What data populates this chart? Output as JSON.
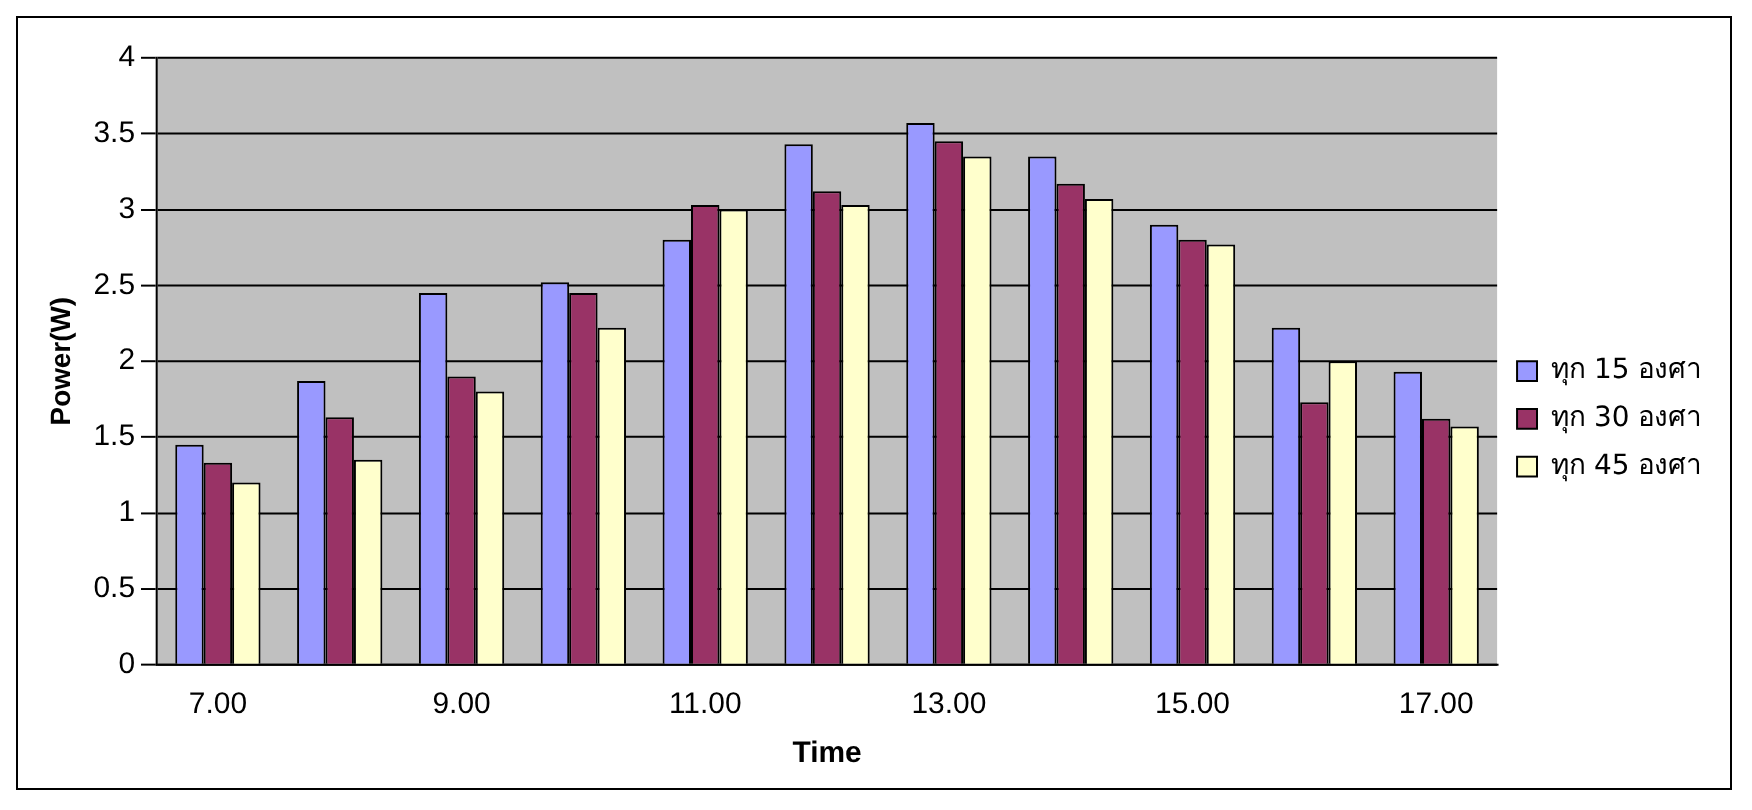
{
  "chart_data": {
    "type": "bar",
    "xlabel": "Time",
    "ylabel": "Power(W)",
    "categories": [
      "7.00",
      null,
      "9.00",
      null,
      "11.00",
      null,
      "13.00",
      null,
      "15.00",
      null,
      "17.00"
    ],
    "series": [
      {
        "name": "ทุก 15 องศา",
        "color": "#9999ff",
        "values": [
          1.45,
          1.87,
          2.45,
          2.52,
          2.8,
          3.43,
          3.57,
          3.35,
          2.9,
          2.22,
          1.93
        ]
      },
      {
        "name": "ทุก 30 องศา",
        "color": "#993366",
        "values": [
          1.33,
          1.63,
          1.9,
          2.45,
          3.03,
          3.12,
          3.45,
          3.17,
          2.8,
          1.73,
          1.62
        ]
      },
      {
        "name": "ทุก 45 องศา",
        "color": "#ffffcc",
        "values": [
          1.2,
          1.35,
          1.8,
          2.22,
          3.0,
          3.03,
          3.35,
          3.07,
          2.77,
          2.0,
          1.57
        ]
      }
    ],
    "ylim": [
      0,
      4
    ],
    "yticks": [
      0,
      0.5,
      1,
      1.5,
      2,
      2.5,
      3,
      3.5,
      4
    ],
    "grid": "y",
    "legend": "right"
  }
}
